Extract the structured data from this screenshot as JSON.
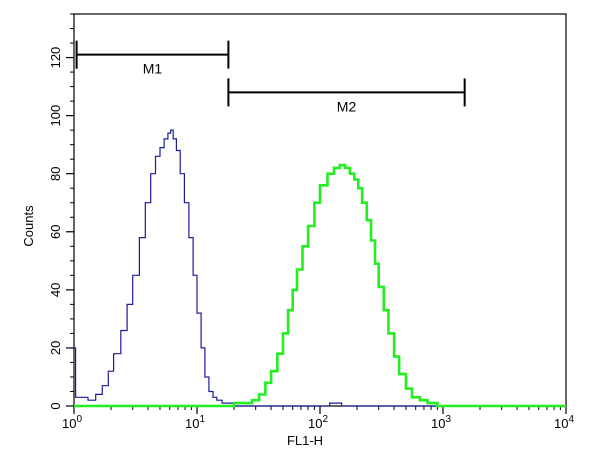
{
  "chart_data": {
    "type": "line",
    "xlabel": "FL1-H",
    "ylabel": "Counts",
    "x_scale": "log",
    "xlim": [
      1,
      10000
    ],
    "ylim": [
      0,
      135
    ],
    "x_ticks": [
      {
        "value": 1,
        "base": "10",
        "exp": "0"
      },
      {
        "value": 10,
        "base": "10",
        "exp": "1"
      },
      {
        "value": 100,
        "base": "10",
        "exp": "2"
      },
      {
        "value": 1000,
        "base": "10",
        "exp": "3"
      },
      {
        "value": 10000,
        "base": "10",
        "exp": "4"
      }
    ],
    "y_ticks": [
      0,
      20,
      40,
      60,
      80,
      100,
      120
    ],
    "markers": [
      {
        "label": "M1",
        "x_start": 1.05,
        "x_end": 18,
        "y": 121
      },
      {
        "label": "M2",
        "x_start": 18,
        "x_end": 1500,
        "y": 108
      }
    ],
    "series": [
      {
        "color": "#1c1c9a",
        "points": [
          [
            1,
            20
          ],
          [
            1.03,
            3
          ],
          [
            1.1,
            3
          ],
          [
            1.3,
            2
          ],
          [
            1.5,
            4
          ],
          [
            1.7,
            7
          ],
          [
            1.9,
            12
          ],
          [
            2.1,
            18
          ],
          [
            2.4,
            26
          ],
          [
            2.7,
            35
          ],
          [
            3.0,
            45
          ],
          [
            3.4,
            58
          ],
          [
            3.8,
            70
          ],
          [
            4.2,
            80
          ],
          [
            4.6,
            86
          ],
          [
            5.0,
            89
          ],
          [
            5.4,
            92
          ],
          [
            5.8,
            94
          ],
          [
            6.1,
            95
          ],
          [
            6.4,
            92
          ],
          [
            6.8,
            88
          ],
          [
            7.3,
            80
          ],
          [
            7.9,
            70
          ],
          [
            8.6,
            58
          ],
          [
            9.3,
            45
          ],
          [
            10,
            32
          ],
          [
            10.8,
            20
          ],
          [
            11.6,
            10
          ],
          [
            12.5,
            5
          ],
          [
            13.5,
            3
          ],
          [
            14.5,
            2
          ],
          [
            16,
            1
          ],
          [
            18,
            1
          ],
          [
            20,
            0
          ],
          [
            100,
            0
          ],
          [
            120,
            1
          ],
          [
            150,
            0
          ],
          [
            10000,
            0
          ]
        ]
      },
      {
        "color": "#22ee22",
        "points": [
          [
            1,
            0
          ],
          [
            15,
            0
          ],
          [
            20,
            1
          ],
          [
            25,
            1
          ],
          [
            28,
            2
          ],
          [
            32,
            4
          ],
          [
            36,
            8
          ],
          [
            40,
            12
          ],
          [
            45,
            18
          ],
          [
            50,
            25
          ],
          [
            55,
            33
          ],
          [
            60,
            40
          ],
          [
            65,
            47
          ],
          [
            72,
            55
          ],
          [
            80,
            62
          ],
          [
            90,
            70
          ],
          [
            100,
            76
          ],
          [
            115,
            80
          ],
          [
            130,
            82
          ],
          [
            145,
            83
          ],
          [
            160,
            82
          ],
          [
            175,
            80
          ],
          [
            190,
            78
          ],
          [
            205,
            75
          ],
          [
            220,
            70
          ],
          [
            240,
            64
          ],
          [
            260,
            57
          ],
          [
            280,
            49
          ],
          [
            300,
            41
          ],
          [
            330,
            33
          ],
          [
            360,
            25
          ],
          [
            400,
            17
          ],
          [
            440,
            11
          ],
          [
            500,
            6
          ],
          [
            560,
            3
          ],
          [
            650,
            2
          ],
          [
            750,
            1
          ],
          [
            900,
            0
          ],
          [
            10000,
            0
          ]
        ]
      }
    ]
  }
}
